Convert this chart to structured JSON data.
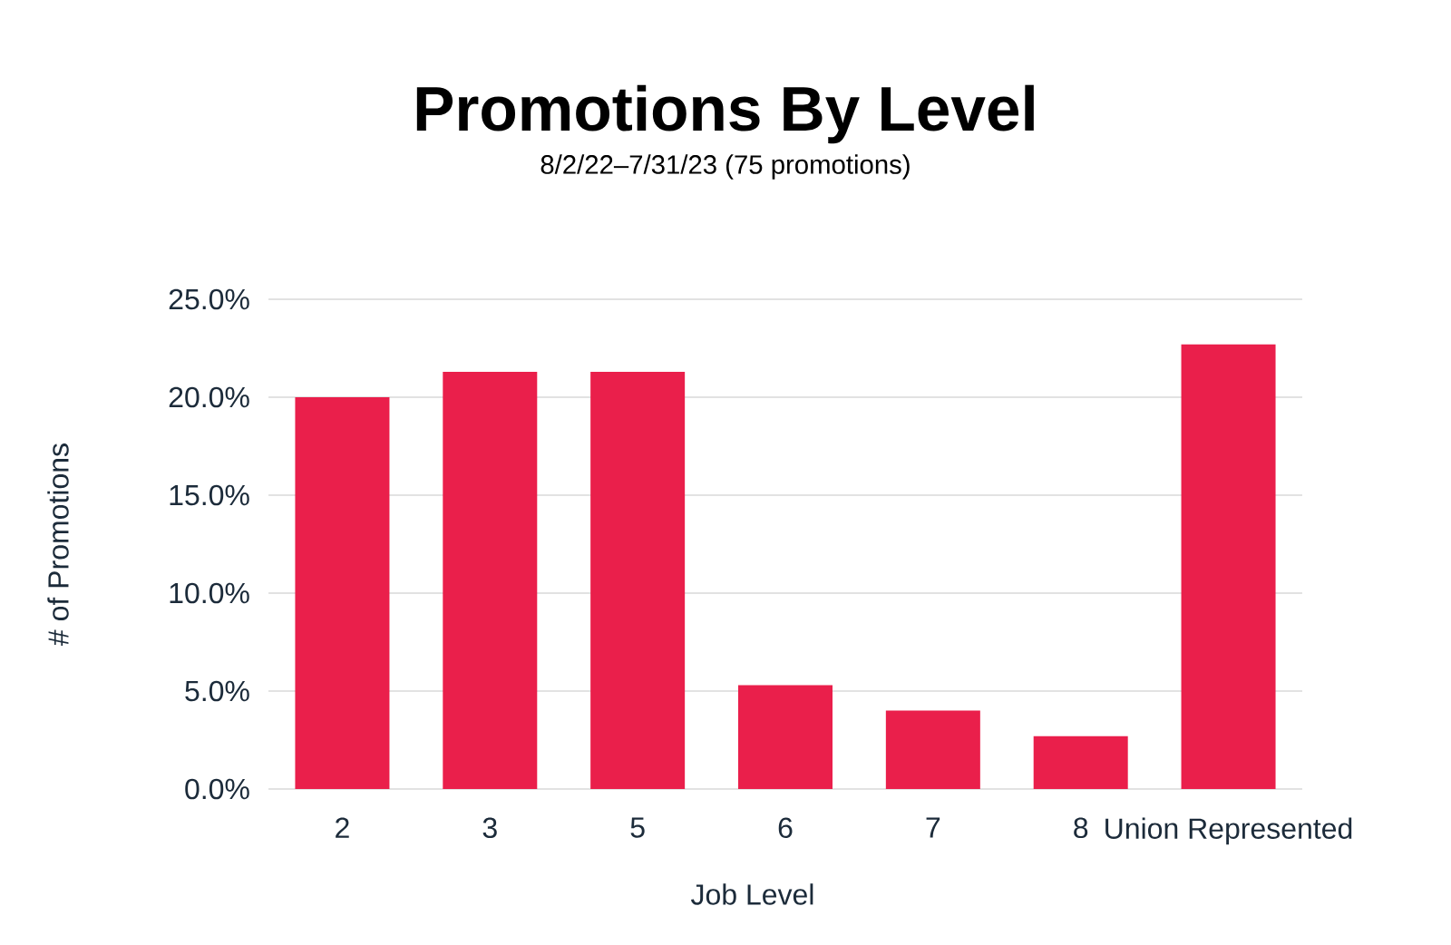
{
  "chart_data": {
    "type": "bar",
    "title": "Promotions By Level",
    "subtitle": "8/2/22–7/31/23 (75 promotions)",
    "xlabel": "Job Level",
    "ylabel": "# of Promotions",
    "categories": [
      "2",
      "3",
      "5",
      "6",
      "7",
      "8",
      "Union Represented"
    ],
    "values": [
      20.0,
      21.3,
      21.3,
      5.3,
      4.0,
      2.7,
      22.7
    ],
    "color": "#ea1f4b",
    "ylim": [
      0,
      25
    ],
    "yticks": [
      {
        "value": 0,
        "label": "0.0%"
      },
      {
        "value": 5,
        "label": "5.0%"
      },
      {
        "value": 10,
        "label": "10.0%"
      },
      {
        "value": 15,
        "label": "15.0%"
      },
      {
        "value": 20,
        "label": "20.0%"
      },
      {
        "value": 25,
        "label": "25.0%"
      }
    ],
    "grid": "y"
  }
}
